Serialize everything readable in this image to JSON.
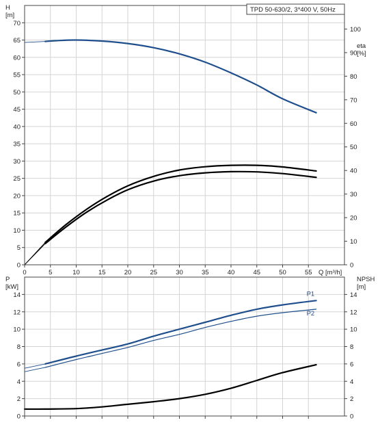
{
  "chart_data": [
    {
      "type": "line",
      "title": "TPD 50-630/2, 3*400 V, 50Hz",
      "xlabel": "Q [m³/h]",
      "ylabel": "H",
      "ylabel_unit": "[m]",
      "y2label": "eta",
      "y2label_unit": "[%]",
      "xlim": [
        0,
        60
      ],
      "ylim": [
        0,
        75
      ],
      "y2lim": [
        0,
        110
      ],
      "x_ticks": [
        0,
        5,
        10,
        15,
        20,
        25,
        30,
        35,
        40,
        45,
        50,
        55
      ],
      "y_ticks": [
        0,
        5,
        10,
        15,
        20,
        25,
        30,
        35,
        40,
        45,
        50,
        55,
        60,
        65,
        70
      ],
      "y2_ticks": [
        0,
        10,
        20,
        30,
        40,
        50,
        60,
        70,
        80,
        90,
        100
      ],
      "grid": true,
      "series": [
        {
          "name": "",
          "axis": "left",
          "color": "#1f4e8c",
          "x": [
            4,
            6,
            10,
            15,
            20,
            25,
            30,
            35,
            40,
            45,
            50,
            56.5
          ],
          "values": [
            64.6,
            64.8,
            65.0,
            64.7,
            64.0,
            62.8,
            61.0,
            58.6,
            55.5,
            52.0,
            48.0,
            44.0
          ],
          "extension_x": [
            0,
            4
          ],
          "extension_values": [
            64.3,
            64.6
          ]
        },
        {
          "name": "",
          "axis": "right",
          "color": "#000000",
          "x": [
            4,
            8,
            12,
            16,
            20,
            25,
            30,
            35,
            40,
            45,
            50,
            56.5
          ],
          "values": [
            9.5,
            17,
            23.5,
            29,
            33.5,
            37.5,
            40.2,
            41.6,
            42.2,
            42.2,
            41.5,
            39.8
          ],
          "extension_x": [
            0,
            4
          ],
          "extension_values": [
            0,
            9.5
          ]
        },
        {
          "name": "",
          "axis": "right",
          "color": "#000000",
          "x": [
            4,
            8,
            12,
            16,
            20,
            25,
            30,
            35,
            40,
            45,
            50,
            56.5
          ],
          "values": [
            9,
            16,
            22.3,
            27.5,
            31.8,
            35.5,
            37.8,
            39.0,
            39.5,
            39.4,
            38.7,
            37.1
          ],
          "extension_x": [
            0,
            4
          ],
          "extension_values": [
            0,
            9
          ]
        }
      ]
    },
    {
      "type": "line",
      "xlabel": "",
      "ylabel": "P",
      "ylabel_unit": "[kW]",
      "y2label": "NPSH",
      "y2label_unit": "[m]",
      "xlim": [
        0,
        60
      ],
      "ylim": [
        0,
        16
      ],
      "y2lim": [
        0,
        16
      ],
      "y_ticks": [
        0,
        2,
        4,
        6,
        8,
        10,
        12,
        14
      ],
      "y2_ticks": [
        0,
        2,
        4,
        6,
        8,
        10,
        12,
        14
      ],
      "grid": true,
      "series": [
        {
          "name": "P1",
          "axis": "left",
          "color": "#1f4e8c",
          "x": [
            4,
            10,
            15,
            20,
            25,
            30,
            35,
            40,
            45,
            50,
            56.5
          ],
          "values": [
            6.0,
            6.9,
            7.6,
            8.3,
            9.2,
            10.0,
            10.8,
            11.6,
            12.3,
            12.8,
            13.3
          ],
          "extension_x": [
            0,
            4
          ],
          "extension_values": [
            5.5,
            6.0
          ]
        },
        {
          "name": "P2",
          "axis": "left",
          "color": "#1f4e8c",
          "x": [
            4,
            10,
            15,
            20,
            25,
            30,
            35,
            40,
            45,
            50,
            56.5
          ],
          "values": [
            5.6,
            6.5,
            7.2,
            7.9,
            8.7,
            9.4,
            10.2,
            10.9,
            11.5,
            11.9,
            12.3
          ],
          "extension_x": [
            0,
            4
          ],
          "extension_values": [
            5.1,
            5.6
          ]
        },
        {
          "name": "",
          "axis": "right",
          "color": "#000000",
          "x": [
            0,
            4,
            10,
            15,
            20,
            25,
            30,
            35,
            40,
            45,
            50,
            56.5
          ],
          "values": [
            0.8,
            0.8,
            0.85,
            1.05,
            1.35,
            1.65,
            2.0,
            2.5,
            3.2,
            4.1,
            5.0,
            5.9
          ]
        }
      ]
    }
  ]
}
